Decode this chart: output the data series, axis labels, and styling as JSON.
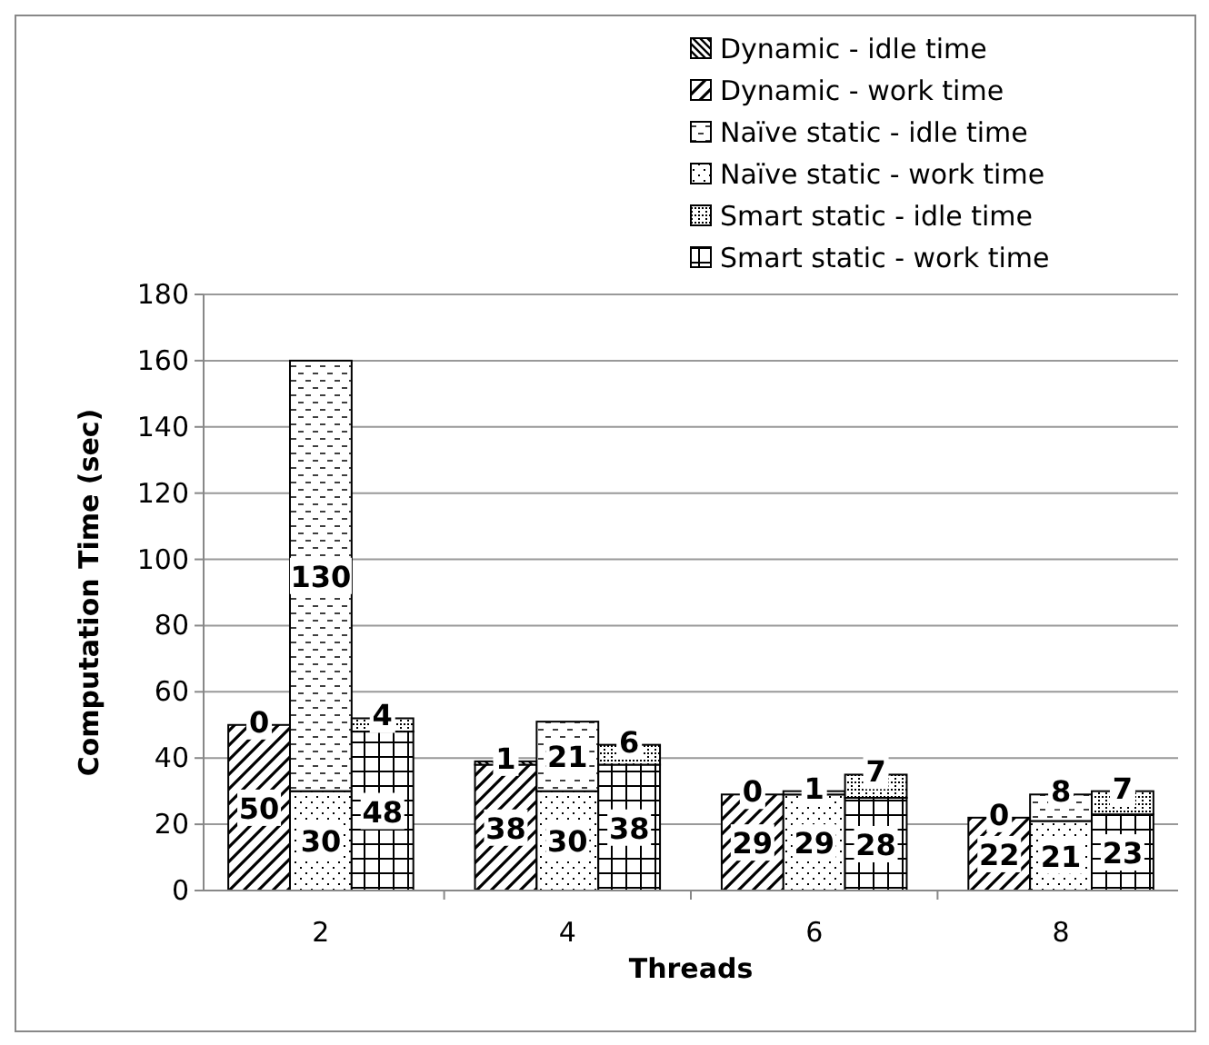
{
  "chart_data": {
    "type": "bar",
    "stacked": true,
    "xlabel": "Threads",
    "ylabel": "Computation Time (sec)",
    "categories": [
      null,
      "2",
      null,
      null,
      null,
      "4",
      null,
      null,
      null,
      "6",
      null,
      null,
      null,
      "8",
      null
    ],
    "series": [
      {
        "name": "Dynamic - work time",
        "color": "#000000",
        "values": [
          50,
          null,
          null,
          null,
          38,
          null,
          null,
          null,
          29,
          null,
          null,
          null,
          22,
          null,
          null
        ]
      },
      {
        "name": "Dynamic - idle time",
        "color": "#000000",
        "values": [
          0,
          null,
          null,
          null,
          1,
          null,
          null,
          null,
          0,
          null,
          null,
          null,
          0,
          null,
          null
        ]
      },
      {
        "name": "Naïve static - work time",
        "color": "#000000",
        "values": [
          null,
          30,
          null,
          null,
          null,
          30,
          null,
          null,
          null,
          29,
          null,
          null,
          null,
          21,
          null
        ]
      },
      {
        "name": "Naïve static - idle time",
        "color": "#000000",
        "values": [
          null,
          130,
          null,
          null,
          null,
          21,
          null,
          null,
          null,
          1,
          null,
          null,
          null,
          8,
          null
        ]
      },
      {
        "name": "Smart static - work time",
        "color": "#000000",
        "values": [
          null,
          null,
          48,
          null,
          null,
          null,
          38,
          null,
          null,
          null,
          28,
          null,
          null,
          null,
          23
        ]
      },
      {
        "name": "Smart static - idle time",
        "color": "#000000",
        "values": [
          null,
          null,
          4,
          null,
          null,
          null,
          6,
          null,
          null,
          null,
          7,
          null,
          null,
          null,
          7
        ]
      }
    ],
    "ylim": [
      0,
      180
    ],
    "yticks": [
      0,
      20,
      40,
      60,
      80,
      100,
      120,
      140,
      160,
      180
    ],
    "grid": "y",
    "legend": "top right",
    "data_labels": true
  }
}
